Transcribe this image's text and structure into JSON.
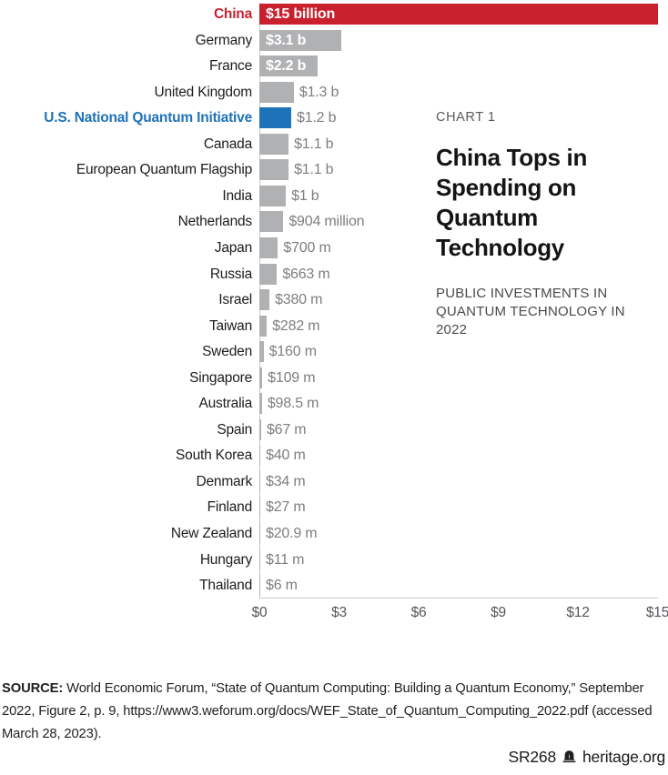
{
  "chart": {
    "kicker": "CHART 1",
    "title": "China Tops in Spending on Quantum Technology",
    "subtitle": "PUBLIC INVESTMENTS IN QUANTUM TECHNOLOGY IN 2022"
  },
  "chart_data": {
    "type": "bar",
    "orientation": "horizontal",
    "unit": "USD millions",
    "title": "China Tops in Spending on Quantum Technology",
    "subtitle": "PUBLIC INVESTMENTS IN QUANTUM TECHNOLOGY IN 2022",
    "categories": [
      "China",
      "Germany",
      "France",
      "United Kingdom",
      "U.S. National Quantum Initiative",
      "Canada",
      "European Quantum Flagship",
      "India",
      "Netherlands",
      "Japan",
      "Russia",
      "Israel",
      "Taiwan",
      "Sweden",
      "Singapore",
      "Australia",
      "Spain",
      "South Korea",
      "Denmark",
      "Finland",
      "New Zealand",
      "Hungary",
      "Thailand"
    ],
    "values": [
      15000,
      3100,
      2200,
      1300,
      1200,
      1100,
      1100,
      1000,
      904,
      700,
      663,
      380,
      282,
      160,
      109,
      98.5,
      67,
      40,
      34,
      27,
      20.9,
      11,
      6
    ],
    "value_labels": [
      "$15 billion",
      "$3.1 b",
      "$2.2 b",
      "$1.3 b",
      "$1.2 b",
      "$1.1 b",
      "$1.1 b",
      "$1 b",
      "$904 million",
      "$700 m",
      "$663 m",
      "$380 m",
      "$282 m",
      "$160 m",
      "$109 m",
      "$98.5 m",
      "$67 m",
      "$40 m",
      "$34 m",
      "$27 m",
      "$20.9 m",
      "$11 m",
      "$6 m"
    ],
    "label_inside_count": 3,
    "highlight": {
      "red_index": 0,
      "blue_index": 4
    },
    "colors": {
      "default_bar": "#b0b1b3",
      "red": "#c9202e",
      "blue": "#1e72b8",
      "value_text": "#7d7e80",
      "axis": "#c9c9c9"
    },
    "x_ticks": [
      "$0",
      "$3",
      "$6",
      "$9",
      "$12",
      "$15"
    ],
    "xlim_billions": [
      0,
      15
    ],
    "grid": false,
    "legend": "none"
  },
  "source": {
    "label": "SOURCE:",
    "text": "World Economic Forum, “State of Quantum Computing: Building a Quantum Economy,” September 2022, Figure 2, p. 9, https://www3.weforum.org/docs/WEF_State_of_Quantum_Computing_2022.pdf (accessed March 28, 2023)."
  },
  "footer": {
    "report_id": "SR268",
    "site": "heritage.org"
  }
}
